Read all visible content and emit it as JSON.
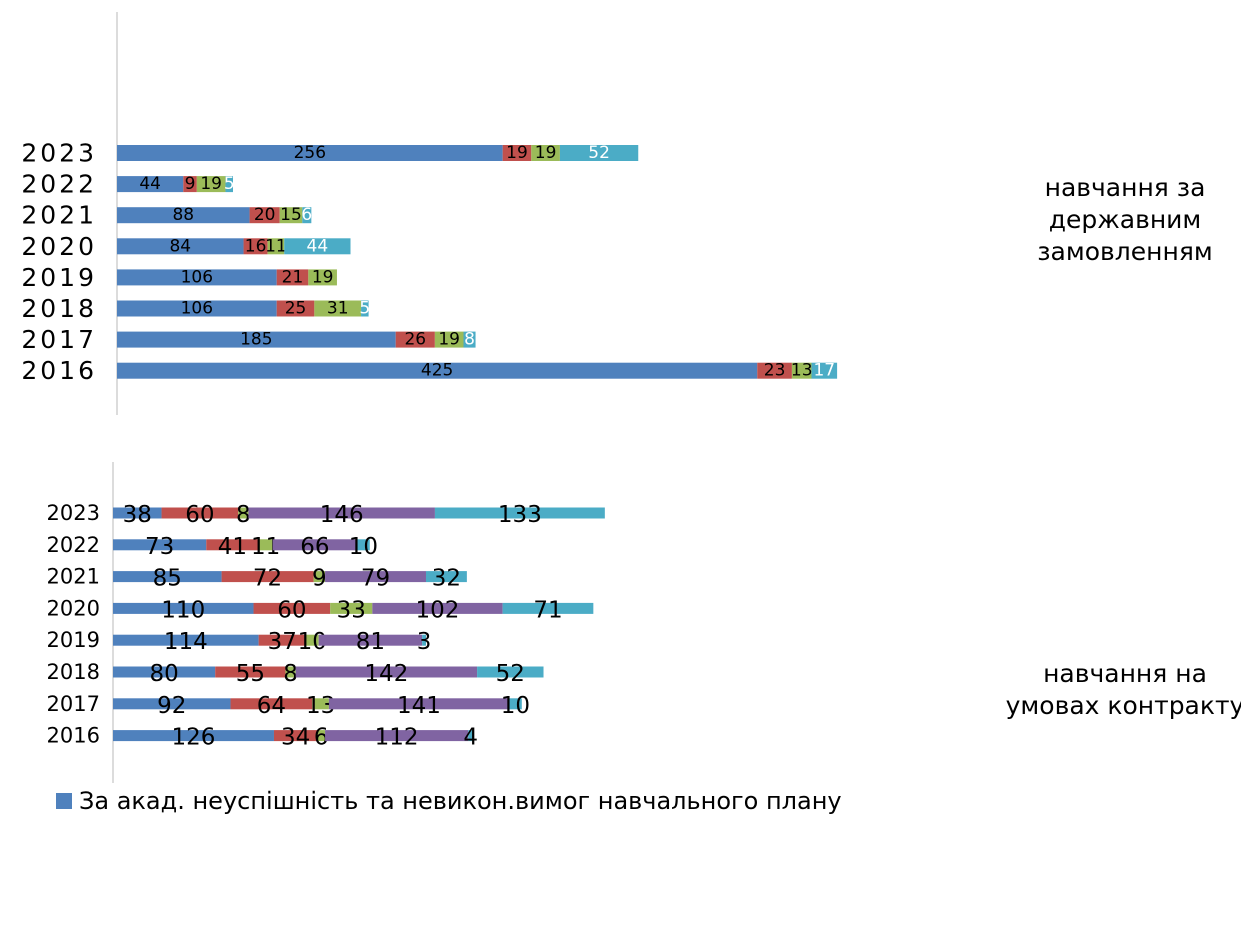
{
  "chart_data": [
    {
      "type": "bar",
      "orientation": "horizontal",
      "stacked": true,
      "group_label": "навчання за державним замовленням",
      "categories": [
        "2016",
        "2017",
        "2018",
        "2019",
        "2020",
        "2021",
        "2022",
        "2023"
      ],
      "series": [
        {
          "color": "#4f81bd",
          "values": [
            425,
            185,
            106,
            106,
            84,
            88,
            44,
            256
          ]
        },
        {
          "color": "#c0504d",
          "values": [
            23,
            26,
            25,
            21,
            16,
            20,
            9,
            19
          ]
        },
        {
          "color": "#9bbb59",
          "values": [
            13,
            19,
            31,
            19,
            11,
            15,
            19,
            19
          ]
        },
        {
          "color": "#4bacc6",
          "values": [
            17,
            8,
            5,
            0,
            44,
            6,
            5,
            52
          ]
        }
      ],
      "axis": {
        "gridlines": false,
        "x_axis_visible": false
      }
    },
    {
      "type": "bar",
      "orientation": "horizontal",
      "stacked": true,
      "group_label": "навчання на умовах контракту",
      "categories": [
        "2016",
        "2017",
        "2018",
        "2019",
        "2020",
        "2021",
        "2022",
        "2023"
      ],
      "series": [
        {
          "color": "#4f81bd",
          "values": [
            126,
            92,
            80,
            114,
            110,
            85,
            73,
            38
          ]
        },
        {
          "color": "#c0504d",
          "values": [
            34,
            64,
            55,
            37,
            60,
            72,
            41,
            60
          ]
        },
        {
          "color": "#9bbb59",
          "values": [
            6,
            13,
            8,
            10,
            33,
            9,
            11,
            8
          ]
        },
        {
          "color": "#8064a2",
          "values": [
            112,
            141,
            142,
            81,
            102,
            79,
            66,
            146
          ]
        },
        {
          "color": "#4bacc6",
          "values": [
            4,
            10,
            52,
            3,
            71,
            32,
            10,
            133
          ]
        }
      ],
      "axis": {
        "gridlines": false,
        "x_axis_visible": false
      }
    }
  ],
  "legend": {
    "items": [
      {
        "label": "За акад. неуспішність та невикон.вимог навчального плану",
        "color": "#4f81bd"
      }
    ]
  }
}
